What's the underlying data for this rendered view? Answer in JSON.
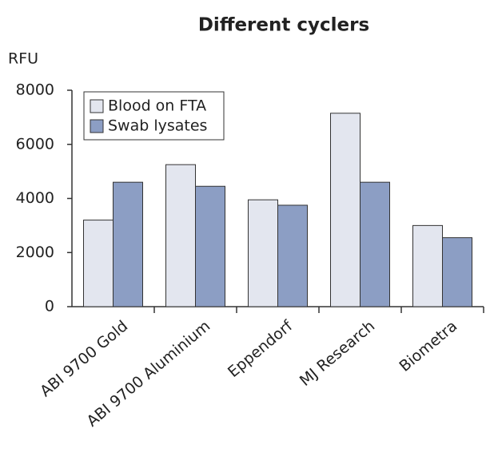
{
  "chart_data": {
    "type": "bar",
    "title": "Different cyclers",
    "y_label": "RFU",
    "categories": [
      "ABI 9700 Gold",
      "ABI 9700 Aluminium",
      "Eppendorf",
      "MJ Research",
      "Biometra"
    ],
    "series": [
      {
        "name": "Blood on FTA",
        "color": "#e3e6ef",
        "values": [
          3200,
          5250,
          3950,
          7150,
          3000
        ]
      },
      {
        "name": "Swab lysates",
        "color": "#8c9ec4",
        "values": [
          4600,
          4450,
          3750,
          4600,
          2550
        ]
      }
    ],
    "ylim": [
      0,
      8000
    ],
    "yticks": [
      0,
      2000,
      4000,
      6000,
      8000
    ],
    "legend": "upper left"
  }
}
